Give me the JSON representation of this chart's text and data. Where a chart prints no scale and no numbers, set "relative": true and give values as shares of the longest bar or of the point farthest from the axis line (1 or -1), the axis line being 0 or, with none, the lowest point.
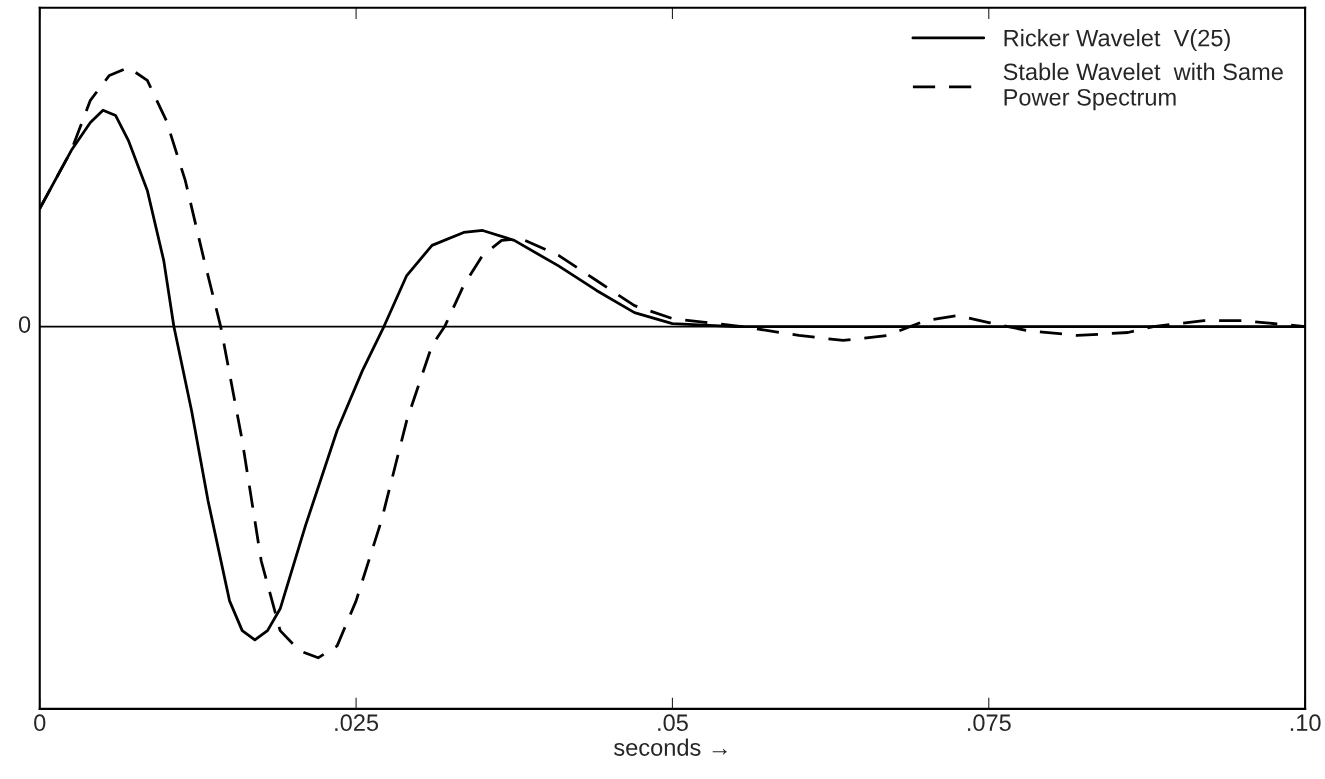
{
  "chart_data": {
    "type": "line",
    "relative": true,
    "xlabel": "seconds →",
    "xlim": [
      0,
      0.1
    ],
    "xticks": [
      {
        "value": 0,
        "label": "0"
      },
      {
        "value": 0.025,
        "label": ".025"
      },
      {
        "value": 0.05,
        "label": ".05"
      },
      {
        "value": 0.075,
        "label": ".075"
      },
      {
        "value": 0.1,
        "label": ".10"
      }
    ],
    "series": [
      {
        "name": "Ricker Wavelet  V(25)",
        "color": "#000000",
        "line_style": "solid",
        "x": [
          0,
          0.0025,
          0.004,
          0.005,
          0.006,
          0.007,
          0.0085,
          0.0098,
          0.0106,
          0.012,
          0.0133,
          0.015,
          0.016,
          0.017,
          0.018,
          0.019,
          0.021,
          0.0235,
          0.0255,
          0.0272,
          0.029,
          0.031,
          0.0335,
          0.035,
          0.0375,
          0.041,
          0.044,
          0.047,
          0.05,
          0.055,
          0.1
        ],
        "values": [
          0.356,
          0.532,
          0.616,
          0.653,
          0.637,
          0.562,
          0.411,
          0.199,
          0,
          -0.254,
          -0.526,
          -0.828,
          -0.918,
          -0.946,
          -0.918,
          -0.852,
          -0.601,
          -0.314,
          -0.133,
          0,
          0.154,
          0.245,
          0.284,
          0.29,
          0.26,
          0.183,
          0.109,
          0.042,
          0.009,
          0,
          0
        ]
      },
      {
        "name": "Stable Wavelet  with Same\nPower Spectrum",
        "color": "#000000",
        "line_style": "dashed",
        "x": [
          0,
          0.0025,
          0.004,
          0.0055,
          0.007,
          0.0085,
          0.01,
          0.0115,
          0.013,
          0.0143,
          0.016,
          0.0175,
          0.019,
          0.0205,
          0.022,
          0.0235,
          0.025,
          0.027,
          0.029,
          0.031,
          0.032,
          0.0335,
          0.035,
          0.0365,
          0.038,
          0.041,
          0.044,
          0.047,
          0.05,
          0.0555,
          0.06,
          0.0635,
          0.067,
          0.07,
          0.0725,
          0.075,
          0.078,
          0.082,
          0.086,
          0.088,
          0.092,
          0.095,
          0.1
        ],
        "values": [
          0.356,
          0.532,
          0.683,
          0.758,
          0.782,
          0.743,
          0.622,
          0.441,
          0.199,
          0,
          -0.344,
          -0.707,
          -0.918,
          -0.978,
          -1,
          -0.964,
          -0.828,
          -0.586,
          -0.284,
          -0.057,
          0,
          0.124,
          0.215,
          0.26,
          0.266,
          0.215,
          0.139,
          0.063,
          0.024,
          0,
          -0.027,
          -0.042,
          -0.027,
          0.018,
          0.033,
          0.012,
          -0.012,
          -0.027,
          -0.018,
          0,
          0.018,
          0.018,
          0
        ]
      }
    ],
    "ref_lines": [
      {
        "axis": "y",
        "value": 0,
        "color": "#000000",
        "line_style": "solid"
      }
    ],
    "annotations": [
      "0"
    ],
    "legend": "top right",
    "grid": false
  }
}
